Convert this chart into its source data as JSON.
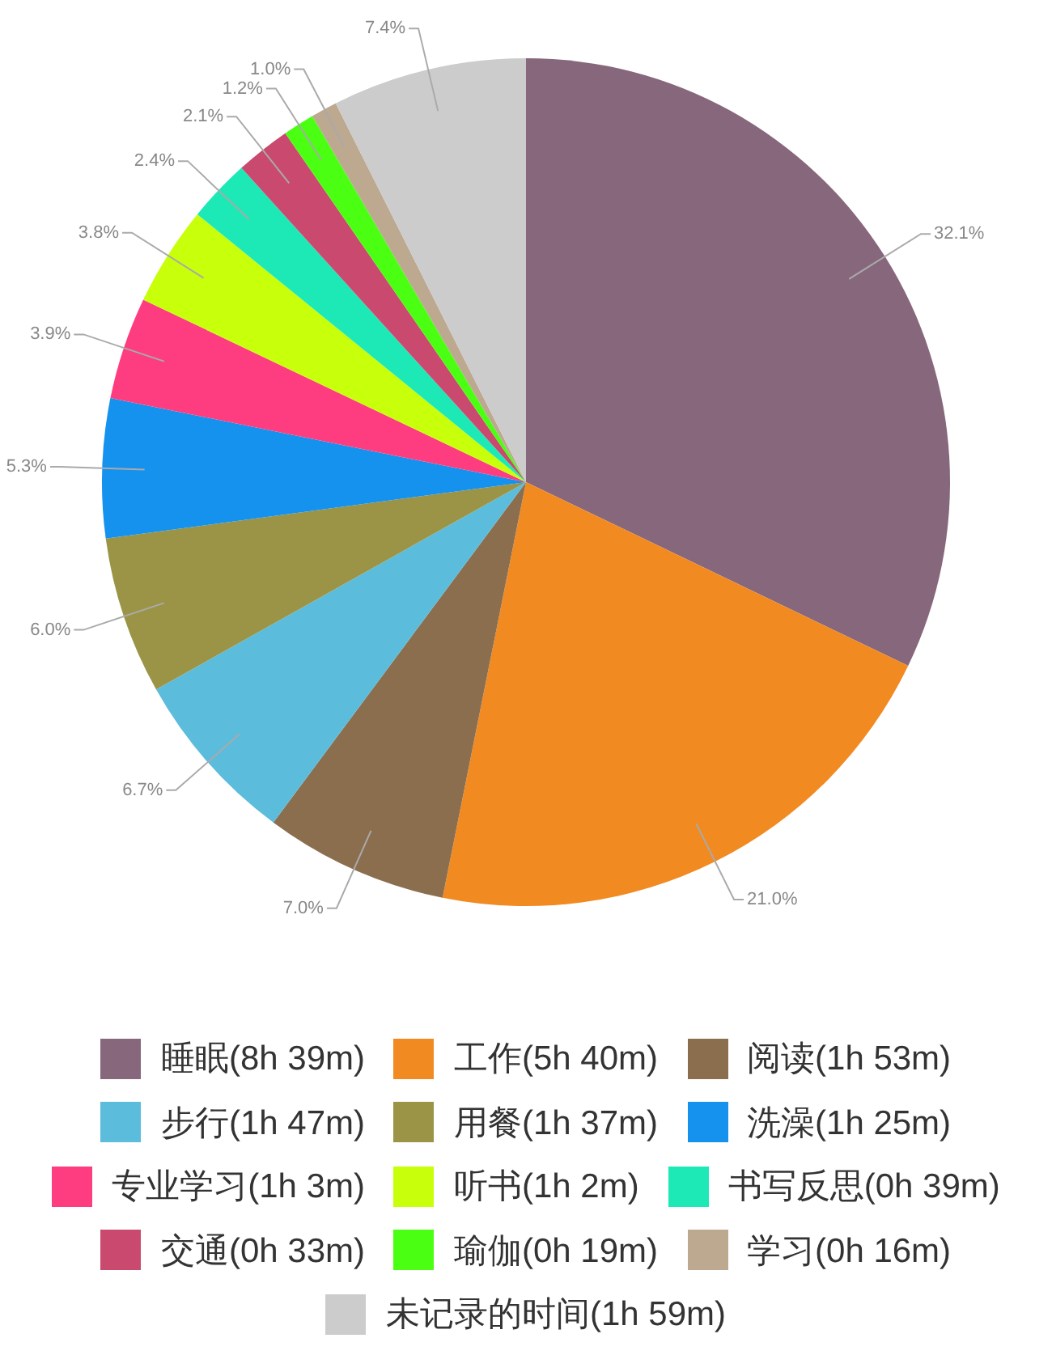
{
  "chart_data": {
    "type": "pie",
    "categories": [
      "睡眠(8h 39m)",
      "工作(5h 40m)",
      "阅读(1h 53m)",
      "步行(1h 47m)",
      "用餐(1h 37m)",
      "洗澡(1h 25m)",
      "专业学习(1h 3m)",
      "听书(1h 2m)",
      "书写反思(0h 39m)",
      "交通(0h 33m)",
      "瑜伽(0h 19m)",
      "学习(0h 16m)",
      "未记录的时间(1h 59m)"
    ],
    "values": [
      32.1,
      21.0,
      7.0,
      6.7,
      6.0,
      5.3,
      3.9,
      3.8,
      2.4,
      2.1,
      1.2,
      1.0,
      7.4
    ],
    "value_labels": [
      "32.1%",
      "21.0%",
      "7.0%",
      "6.7%",
      "6.0%",
      "5.3%",
      "3.9%",
      "3.8%",
      "2.4%",
      "2.1%",
      "1.2%",
      "1.0%",
      "7.4%"
    ],
    "colors": [
      "#87677b",
      "#f28a22",
      "#8b6e4e",
      "#5bbcdc",
      "#9b9446",
      "#1591ee",
      "#fe3d80",
      "#c8ff0a",
      "#1de9b6",
      "#c94a6e",
      "#4aff12",
      "#bda890",
      "#cccccc"
    ],
    "legend": "bottom"
  }
}
